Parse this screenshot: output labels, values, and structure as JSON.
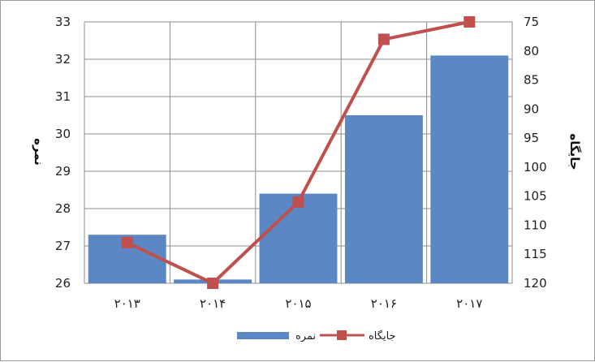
{
  "chart_data": {
    "type": "bar",
    "categories": [
      "۲۰۱۳",
      "۲۰۱۴",
      "۲۰۱۵",
      "۲۰۱۶",
      "۲۰۱۷"
    ],
    "series": [
      {
        "name": "نمره",
        "type": "bar",
        "axis": "left",
        "color": "#5b87c5",
        "values": [
          27.3,
          26.1,
          28.4,
          30.5,
          32.1
        ]
      },
      {
        "name": "جایگاه",
        "type": "line",
        "axis": "right",
        "color": "#c0504d",
        "values": [
          113,
          120,
          106,
          78,
          75
        ]
      }
    ],
    "y_left": {
      "label": "نمره",
      "min": 26,
      "max": 33,
      "ticks": [
        26,
        27,
        28,
        29,
        30,
        31,
        32,
        33
      ]
    },
    "y_right": {
      "label": "جایگاه",
      "min": 75,
      "max": 120,
      "reversed": true,
      "ticks": [
        75,
        80,
        85,
        90,
        95,
        100,
        105,
        110,
        115,
        120
      ]
    },
    "grid": true,
    "legend": "bottom"
  }
}
